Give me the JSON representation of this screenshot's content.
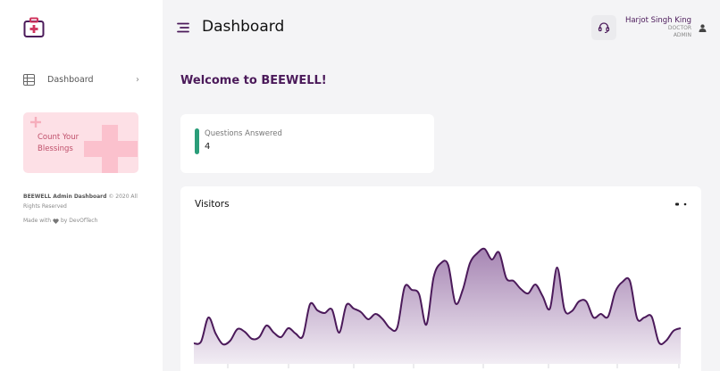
{
  "sidebar": {
    "logo_icon": "medical-kit-icon",
    "nav": [
      {
        "label": "Dashboard",
        "icon": "list-icon"
      }
    ],
    "promo": {
      "text": "Count Your Blessings"
    },
    "footer": {
      "brand": "BEEWELL Admin Dashboard",
      "copyright": "© 2020 All Rights Reserved",
      "made_with": "Made with",
      "by": "by DevOfTech"
    }
  },
  "header": {
    "title": "Dashboard",
    "user": {
      "name": "Harjot Singh King",
      "role1": "DOCTOR",
      "role2": "ADMIN"
    }
  },
  "main": {
    "welcome": "Welcome to BEEWELL!",
    "stat": {
      "label": "Questions Answered",
      "value": "4"
    }
  },
  "chart_data": {
    "type": "area",
    "title": "Visitors",
    "series": [
      {
        "color": "#4b1a5a",
        "values": [
          23,
          25,
          52,
          34,
          22,
          26,
          39,
          36,
          28,
          30,
          43,
          35,
          30,
          40,
          34,
          31,
          67,
          60,
          57,
          61,
          35,
          66,
          62,
          58,
          50,
          56,
          50,
          40,
          41,
          86,
          83,
          78,
          44,
          97,
          113,
          111,
          68,
          83,
          113,
          124,
          129,
          117,
          125,
          96,
          93,
          84,
          79,
          89,
          76,
          62,
          108,
          61,
          59,
          70,
          70,
          52,
          56,
          53,
          81,
          92,
          93,
          51,
          52,
          53,
          24,
          26,
          37,
          40
        ]
      }
    ],
    "colors": {
      "line": "#4b1a5a",
      "fill_top": "#a685b3",
      "fill_bottom": "#f2edf4"
    }
  }
}
